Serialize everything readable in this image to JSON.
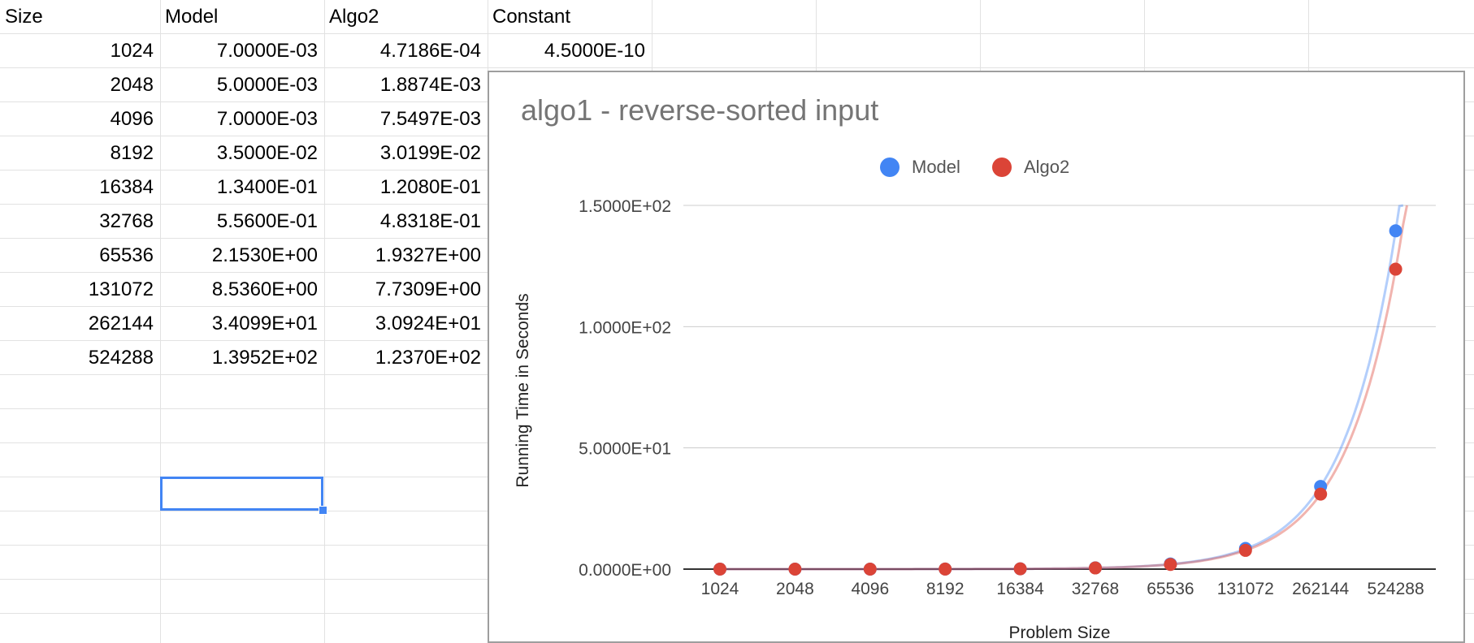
{
  "sheet": {
    "headers": [
      "Size",
      "Model",
      "Algo2",
      "Constant"
    ],
    "rows": [
      [
        "1024",
        "7.0000E-03",
        "4.7186E-04",
        "4.5000E-10"
      ],
      [
        "2048",
        "5.0000E-03",
        "1.8874E-03",
        ""
      ],
      [
        "4096",
        "7.0000E-03",
        "7.5497E-03",
        ""
      ],
      [
        "8192",
        "3.5000E-02",
        "3.0199E-02",
        ""
      ],
      [
        "16384",
        "1.3400E-01",
        "1.2080E-01",
        ""
      ],
      [
        "32768",
        "5.5600E-01",
        "4.8318E-01",
        ""
      ],
      [
        "65536",
        "2.1530E+00",
        "1.9327E+00",
        ""
      ],
      [
        "131072",
        "8.5360E+00",
        "7.7309E+00",
        ""
      ],
      [
        "262144",
        "3.4099E+01",
        "3.0924E+01",
        ""
      ],
      [
        "524288",
        "1.3952E+02",
        "1.2370E+02",
        ""
      ]
    ]
  },
  "chart_data": {
    "type": "scatter",
    "title": "algo1 - reverse-sorted input",
    "xlabel": "Problem Size",
    "ylabel": "Running Time in Seconds",
    "categories": [
      "1024",
      "2048",
      "4096",
      "8192",
      "16384",
      "32768",
      "65536",
      "131072",
      "262144",
      "524288"
    ],
    "x": [
      1024,
      2048,
      4096,
      8192,
      16384,
      32768,
      65536,
      131072,
      262144,
      524288
    ],
    "series": [
      {
        "name": "Model",
        "color": "#4285f4",
        "trendline": "polynomial",
        "values": [
          0.007,
          0.005,
          0.007,
          0.035,
          0.134,
          0.556,
          2.153,
          8.536,
          34.099,
          139.52
        ]
      },
      {
        "name": "Algo2",
        "color": "#db4437",
        "trendline": "polynomial",
        "values": [
          0.00047186,
          0.0018874,
          0.0075497,
          0.030199,
          0.1208,
          0.48318,
          1.9327,
          7.7309,
          30.924,
          123.7
        ]
      }
    ],
    "ylim": [
      0,
      150
    ],
    "yticks": [
      0,
      50,
      100,
      150
    ],
    "ytick_labels": [
      "0.0000E+00",
      "5.0000E+01",
      "1.0000E+02",
      "1.5000E+02"
    ],
    "legend": "top",
    "grid": true
  }
}
